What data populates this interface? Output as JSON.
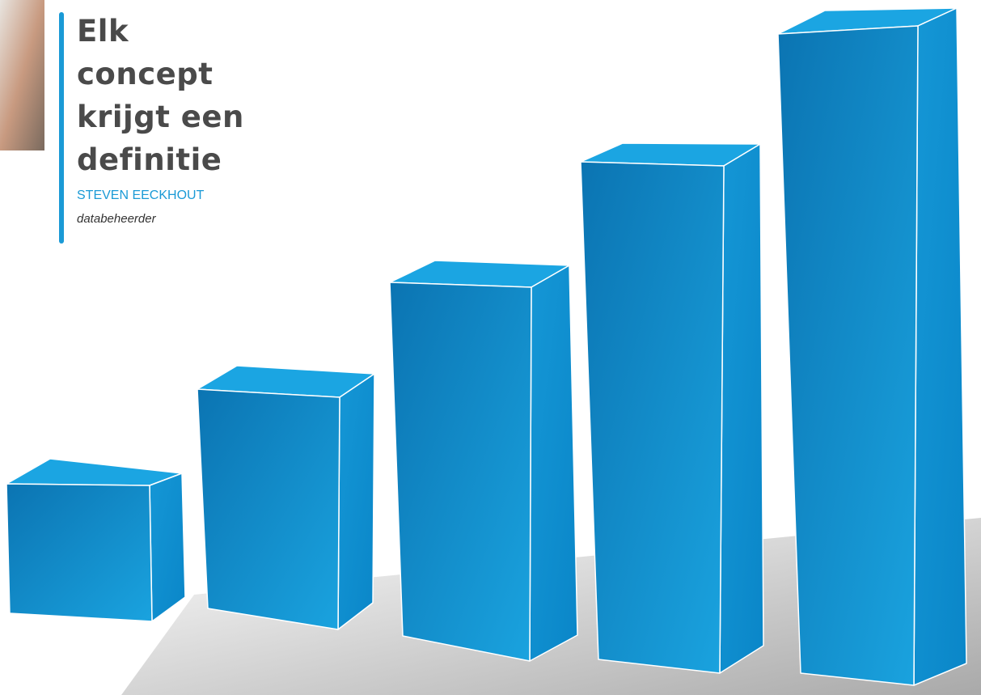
{
  "header": {
    "title_lines": [
      "Elk",
      "concept",
      "krijgt een",
      "definitie"
    ],
    "author": "STEVEN EECKHOUT",
    "role": "databeheerder"
  }
}
